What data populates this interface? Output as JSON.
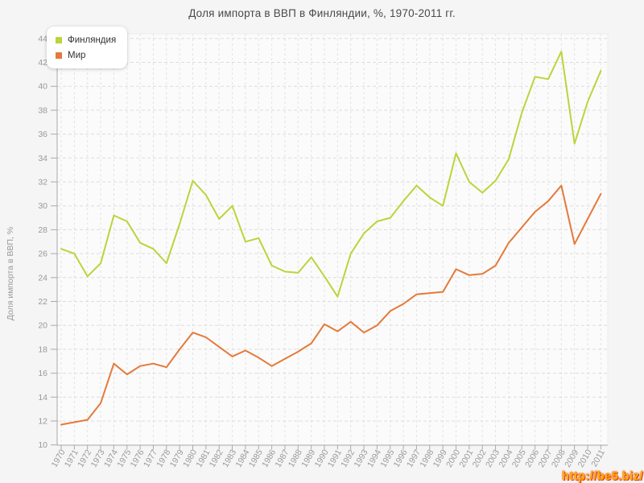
{
  "title": "Доля импорта в ВВП в Финляндии, %, 1970-2011 гг.",
  "watermark": "http://be5.biz/",
  "chart_data": {
    "type": "line",
    "title": "Доля импорта в ВВП в Финляндии, %, 1970-2011 гг.",
    "xlabel": "",
    "ylabel": "Доля импорта в ВВП, %",
    "ylim": [
      10,
      44
    ],
    "yticks": [
      10,
      12,
      14,
      16,
      18,
      20,
      22,
      24,
      26,
      28,
      30,
      32,
      34,
      36,
      38,
      40,
      42,
      44
    ],
    "grid": true,
    "legend_position": "top-left",
    "x": [
      1970,
      1971,
      1972,
      1973,
      1974,
      1975,
      1976,
      1977,
      1978,
      1979,
      1980,
      1981,
      1982,
      1983,
      1984,
      1985,
      1986,
      1987,
      1988,
      1989,
      1990,
      1991,
      1992,
      1993,
      1994,
      1995,
      1996,
      1997,
      1998,
      1999,
      2000,
      2001,
      2002,
      2003,
      2004,
      2005,
      2006,
      2007,
      2008,
      2009,
      2010,
      2011
    ],
    "series": [
      {
        "name": "Финляндия",
        "color": "#bdd33b",
        "values": [
          26.4,
          26.0,
          24.1,
          25.2,
          29.2,
          28.7,
          26.9,
          26.4,
          25.2,
          28.5,
          32.1,
          30.9,
          28.9,
          30.0,
          27.0,
          27.3,
          25.0,
          24.5,
          24.4,
          25.7,
          24.1,
          22.4,
          26.0,
          27.7,
          28.7,
          29.0,
          30.4,
          31.7,
          30.7,
          30.0,
          34.4,
          32.0,
          31.1,
          32.1,
          33.9,
          37.8,
          40.8,
          40.6,
          42.9,
          35.2,
          38.7,
          41.3
        ]
      },
      {
        "name": "Мир",
        "color": "#e5793a",
        "values": [
          11.7,
          11.9,
          12.1,
          13.5,
          16.8,
          15.9,
          16.6,
          16.8,
          16.5,
          18.0,
          19.4,
          19.0,
          18.2,
          17.4,
          17.9,
          17.3,
          16.6,
          17.2,
          17.8,
          18.5,
          20.1,
          19.5,
          20.3,
          19.4,
          20.0,
          21.2,
          21.8,
          22.6,
          22.7,
          22.8,
          24.7,
          24.2,
          24.3,
          25.0,
          26.9,
          28.2,
          29.5,
          30.4,
          31.7,
          26.8,
          28.9,
          31.0
        ]
      }
    ]
  }
}
